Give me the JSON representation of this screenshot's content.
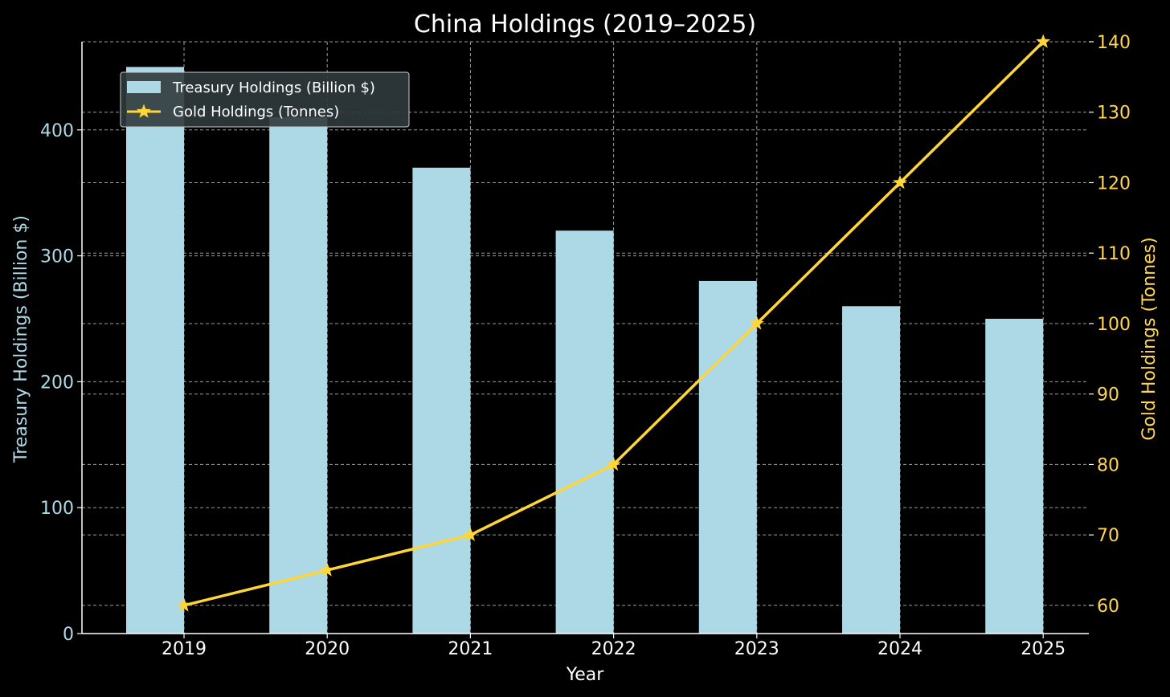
{
  "chart_data": {
    "type": "bar",
    "title": "China Holdings (2019–2025)",
    "xlabel": "Year",
    "ylabel": "Treasury Holdings (Billion $)",
    "y2label": "Gold Holdings (Tonnes)",
    "categories": [
      "2019",
      "2020",
      "2021",
      "2022",
      "2023",
      "2024",
      "2025"
    ],
    "ylim": [
      0,
      470
    ],
    "y2lim": [
      56,
      140
    ],
    "yticks": [
      0,
      100,
      200,
      300,
      400
    ],
    "y2ticks": [
      60,
      70,
      80,
      90,
      100,
      110,
      120,
      130,
      140
    ],
    "grid": true,
    "legend_position": "top-left",
    "series": [
      {
        "name": "Treasury Holdings (Billion $)",
        "type": "bar",
        "axis": "left",
        "color": "#add8e6",
        "values": [
          450,
          410,
          370,
          320,
          280,
          260,
          250
        ]
      },
      {
        "name": "Gold Holdings (Tonnes)",
        "type": "line",
        "marker": "star",
        "axis": "right",
        "color": "#ffd635",
        "values": [
          60,
          65,
          70,
          80,
          100,
          120,
          140
        ]
      }
    ]
  }
}
